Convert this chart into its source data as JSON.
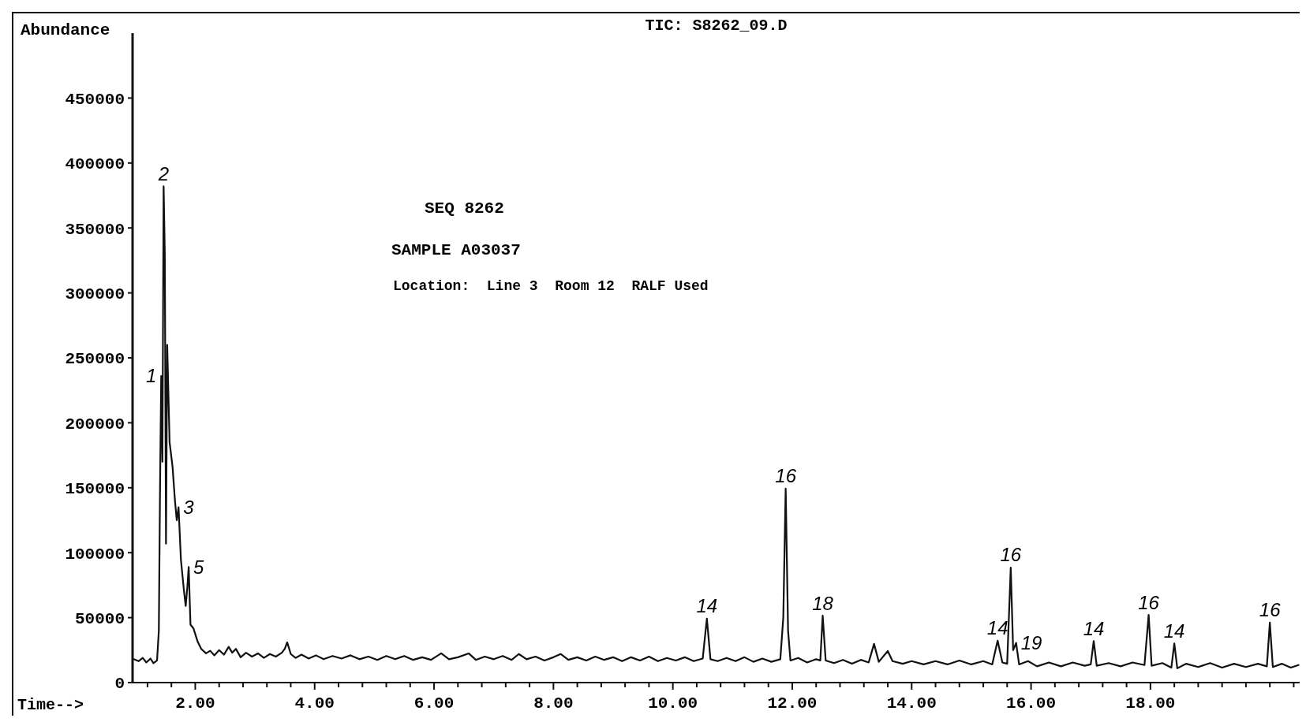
{
  "chart_data": {
    "type": "line",
    "title": "TIC: S8262_09.D",
    "xlabel": "Time-->",
    "ylabel": "Abundance",
    "color": "#111111",
    "line_style": "solid",
    "grid": false,
    "xlim": [
      0.95,
      20.5
    ],
    "ylim": [
      0,
      500000
    ],
    "xticks": [
      {
        "value": 1.2,
        "label": null
      },
      {
        "value": 1.6,
        "label": null
      },
      {
        "value": 2,
        "label": "2.00"
      },
      {
        "value": 2.4,
        "label": null
      },
      {
        "value": 2.8,
        "label": null
      },
      {
        "value": 3.2,
        "label": null
      },
      {
        "value": 3.6,
        "label": null
      },
      {
        "value": 4,
        "label": "4.00"
      },
      {
        "value": 4.4,
        "label": null
      },
      {
        "value": 4.8,
        "label": null
      },
      {
        "value": 5.2,
        "label": null
      },
      {
        "value": 5.6,
        "label": null
      },
      {
        "value": 6,
        "label": "6.00"
      },
      {
        "value": 6.4,
        "label": null
      },
      {
        "value": 6.8,
        "label": null
      },
      {
        "value": 7.2,
        "label": null
      },
      {
        "value": 7.6,
        "label": null
      },
      {
        "value": 8,
        "label": "8.00"
      },
      {
        "value": 8.4,
        "label": null
      },
      {
        "value": 8.8,
        "label": null
      },
      {
        "value": 9.2,
        "label": null
      },
      {
        "value": 9.6,
        "label": null
      },
      {
        "value": 10,
        "label": "10.00"
      },
      {
        "value": 10.4,
        "label": null
      },
      {
        "value": 10.8,
        "label": null
      },
      {
        "value": 11.2,
        "label": null
      },
      {
        "value": 11.6,
        "label": null
      },
      {
        "value": 12,
        "label": "12.00"
      },
      {
        "value": 12.4,
        "label": null
      },
      {
        "value": 12.8,
        "label": null
      },
      {
        "value": 13.2,
        "label": null
      },
      {
        "value": 13.6,
        "label": null
      },
      {
        "value": 14,
        "label": "14.00"
      },
      {
        "value": 14.4,
        "label": null
      },
      {
        "value": 14.8,
        "label": null
      },
      {
        "value": 15.2,
        "label": null
      },
      {
        "value": 15.6,
        "label": null
      },
      {
        "value": 16,
        "label": "16.00"
      },
      {
        "value": 16.4,
        "label": null
      },
      {
        "value": 16.8,
        "label": null
      },
      {
        "value": 17.2,
        "label": null
      },
      {
        "value": 17.6,
        "label": null
      },
      {
        "value": 18,
        "label": "18.00"
      },
      {
        "value": 18.4,
        "label": null
      },
      {
        "value": 18.8,
        "label": null
      },
      {
        "value": 19.2,
        "label": null
      },
      {
        "value": 19.6,
        "label": null
      },
      {
        "value": 20,
        "label": null
      },
      {
        "value": 20.4,
        "label": null
      }
    ],
    "yticks": [
      0,
      50000,
      100000,
      150000,
      200000,
      250000,
      300000,
      350000,
      400000,
      450000
    ],
    "x": [
      0.97,
      1.05,
      1.12,
      1.18,
      1.25,
      1.3,
      1.36,
      1.39,
      1.41,
      1.43,
      1.45,
      1.47,
      1.49,
      1.51,
      1.53,
      1.57,
      1.62,
      1.66,
      1.69,
      1.72,
      1.76,
      1.81,
      1.84,
      1.87,
      1.89,
      1.92,
      1.97,
      2.04,
      2.1,
      2.18,
      2.25,
      2.32,
      2.4,
      2.48,
      2.56,
      2.62,
      2.68,
      2.76,
      2.85,
      2.95,
      3.05,
      3.15,
      3.25,
      3.35,
      3.45,
      3.5,
      3.54,
      3.6,
      3.68,
      3.78,
      3.9,
      4.02,
      4.15,
      4.3,
      4.45,
      4.6,
      4.75,
      4.9,
      5.05,
      5.2,
      5.35,
      5.5,
      5.65,
      5.8,
      5.95,
      6.12,
      6.25,
      6.4,
      6.58,
      6.7,
      6.85,
      7.0,
      7.15,
      7.3,
      7.42,
      7.55,
      7.7,
      7.85,
      8.0,
      8.12,
      8.25,
      8.4,
      8.55,
      8.7,
      8.85,
      9.0,
      9.15,
      9.3,
      9.45,
      9.6,
      9.75,
      9.9,
      10.05,
      10.2,
      10.35,
      10.5,
      10.57,
      10.63,
      10.75,
      10.9,
      11.05,
      11.2,
      11.35,
      11.5,
      11.65,
      11.8,
      11.85,
      11.89,
      11.93,
      11.97,
      12.1,
      12.25,
      12.4,
      12.47,
      12.51,
      12.56,
      12.7,
      12.85,
      13.0,
      13.15,
      13.28,
      13.37,
      13.45,
      13.6,
      13.68,
      13.85,
      14.0,
      14.2,
      14.4,
      14.6,
      14.8,
      15.0,
      15.2,
      15.35,
      15.44,
      15.52,
      15.6,
      15.66,
      15.7,
      15.75,
      15.8,
      15.95,
      16.1,
      16.3,
      16.5,
      16.7,
      16.9,
      17.0,
      17.05,
      17.1,
      17.3,
      17.5,
      17.7,
      17.9,
      17.97,
      18.02,
      18.2,
      18.35,
      18.4,
      18.45,
      18.6,
      18.8,
      19.0,
      19.2,
      19.4,
      19.6,
      19.8,
      19.95,
      20.0,
      20.05,
      20.2,
      20.35,
      20.48
    ],
    "values": [
      18000,
      16500,
      19000,
      15500,
      18500,
      15000,
      17000,
      40000,
      150000,
      236000,
      170000,
      382000,
      330000,
      107000,
      260000,
      185000,
      166000,
      140000,
      125000,
      135000,
      94500,
      71000,
      59000,
      75000,
      89000,
      44600,
      41700,
      31500,
      25900,
      22500,
      24500,
      21000,
      25000,
      21500,
      27500,
      23000,
      26000,
      19500,
      23000,
      20000,
      22500,
      19000,
      22000,
      20000,
      23000,
      26000,
      31000,
      22000,
      19000,
      21500,
      18500,
      21000,
      18000,
      20500,
      18500,
      21000,
      18000,
      20000,
      17500,
      20500,
      18000,
      20500,
      17500,
      19500,
      17500,
      22500,
      18000,
      19500,
      22500,
      17500,
      20000,
      18000,
      20500,
      17500,
      22000,
      18000,
      20000,
      17000,
      19500,
      22000,
      17500,
      19500,
      17000,
      20000,
      17500,
      19500,
      16500,
      19500,
      17000,
      20000,
      16500,
      19000,
      17000,
      19500,
      16500,
      18500,
      49300,
      18000,
      16500,
      19000,
      16500,
      19500,
      16000,
      18500,
      16000,
      18000,
      50000,
      149400,
      40000,
      17000,
      19000,
      15500,
      18000,
      17000,
      51500,
      17000,
      15000,
      17500,
      14500,
      17500,
      15500,
      29800,
      16000,
      24300,
      16500,
      14500,
      16500,
      14000,
      16500,
      14000,
      17000,
      14000,
      16500,
      14000,
      32300,
      15500,
      14500,
      88600,
      25000,
      30500,
      14000,
      16500,
      12500,
      15500,
      12500,
      15500,
      13000,
      14000,
      32000,
      13000,
      15000,
      12500,
      15500,
      13500,
      52100,
      13000,
      15000,
      11500,
      30100,
      11000,
      14500,
      12000,
      15000,
      11500,
      14500,
      12000,
      14500,
      12500,
      46200,
      12000,
      14500,
      11500,
      13500
    ],
    "annotations": [
      "SEQ 8262",
      "SAMPLE A03037",
      "Location:  Line 3  Room 12  RALF Used",
      {
        "text": "1",
        "x": 1.43,
        "y": 236000
      },
      {
        "text": "2",
        "x": 1.47,
        "y": 382000
      },
      {
        "text": "3",
        "x": 1.72,
        "y": 135000
      },
      {
        "text": "5",
        "x": 1.89,
        "y": 89000
      },
      {
        "text": "14",
        "x": 10.57,
        "y": 49300
      },
      {
        "text": "16",
        "x": 11.89,
        "y": 149400
      },
      {
        "text": "18",
        "x": 12.51,
        "y": 51500
      },
      {
        "text": "14",
        "x": 15.44,
        "y": 32300
      },
      {
        "text": "16",
        "x": 15.66,
        "y": 88600
      },
      {
        "text": "19",
        "x": 15.75,
        "y": 30500
      },
      {
        "text": "14",
        "x": 17.05,
        "y": 32000
      },
      {
        "text": "16",
        "x": 17.97,
        "y": 52100
      },
      {
        "text": "14",
        "x": 18.4,
        "y": 30100
      },
      {
        "text": "16",
        "x": 20.0,
        "y": 46200
      }
    ]
  }
}
